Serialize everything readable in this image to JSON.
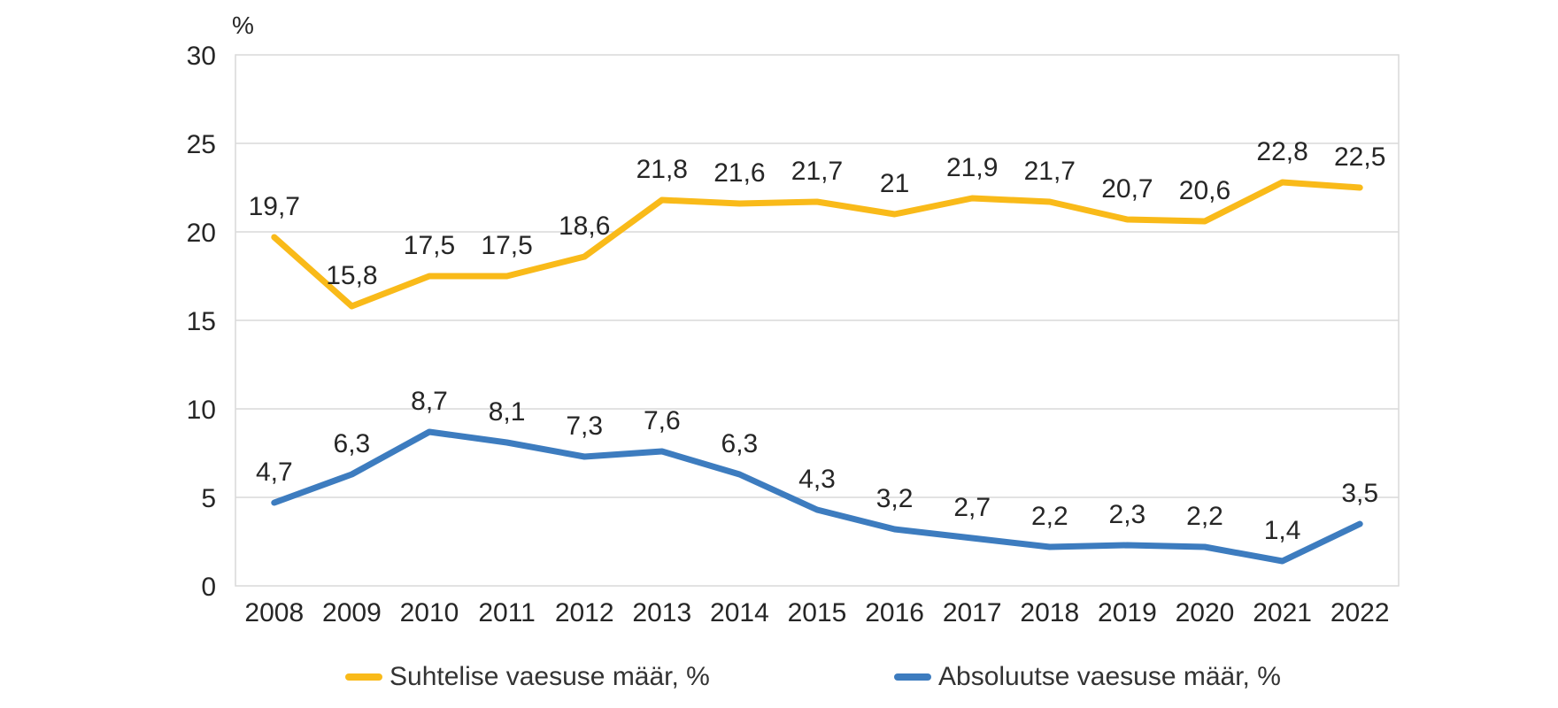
{
  "chart_data": {
    "type": "line",
    "title": "",
    "unit_label": "%",
    "xlabel": "",
    "ylabel": "%",
    "ylim": [
      0,
      30
    ],
    "yticks": [
      0,
      5,
      10,
      15,
      20,
      25,
      30
    ],
    "ytick_labels": [
      "0",
      "5",
      "10",
      "15",
      "20",
      "25",
      "30"
    ],
    "grid": true,
    "legend_position": "bottom",
    "categories": [
      "2008",
      "2009",
      "2010",
      "2011",
      "2012",
      "2013",
      "2014",
      "2015",
      "2016",
      "2017",
      "2018",
      "2019",
      "2020",
      "2021",
      "2022"
    ],
    "series": [
      {
        "name": "Suhtelise vaesuse määr, %",
        "color": "#F9BA19",
        "values": [
          19.7,
          15.8,
          17.5,
          17.5,
          18.6,
          21.8,
          21.6,
          21.7,
          21,
          21.9,
          21.7,
          20.7,
          20.6,
          22.8,
          22.5
        ],
        "labels": [
          "19,7",
          "15,8",
          "17,5",
          "17,5",
          "18,6",
          "21,8",
          "21,6",
          "21,7",
          "21",
          "21,9",
          "21,7",
          "20,7",
          "20,6",
          "22,8",
          "22,5"
        ]
      },
      {
        "name": "Absoluutse vaesuse määr, %",
        "color": "#3D7CBF",
        "values": [
          4.7,
          6.3,
          8.7,
          8.1,
          7.3,
          7.6,
          6.3,
          4.3,
          3.2,
          2.7,
          2.2,
          2.3,
          2.2,
          1.4,
          3.5
        ],
        "labels": [
          "4,7",
          "6,3",
          "8,7",
          "8,1",
          "7,3",
          "7,6",
          "6,3",
          "4,3",
          "3,2",
          "2,7",
          "2,2",
          "2,3",
          "2,2",
          "1,4",
          "3,5"
        ]
      }
    ],
    "colors": {
      "grid": "#D9D9D9",
      "tick_text": "#262626",
      "data_label_text": "#262626"
    }
  },
  "legend": {
    "items": [
      {
        "label": "Suhtelise vaesuse määr, %"
      },
      {
        "label": "Absoluutse vaesuse määr, %"
      }
    ]
  }
}
